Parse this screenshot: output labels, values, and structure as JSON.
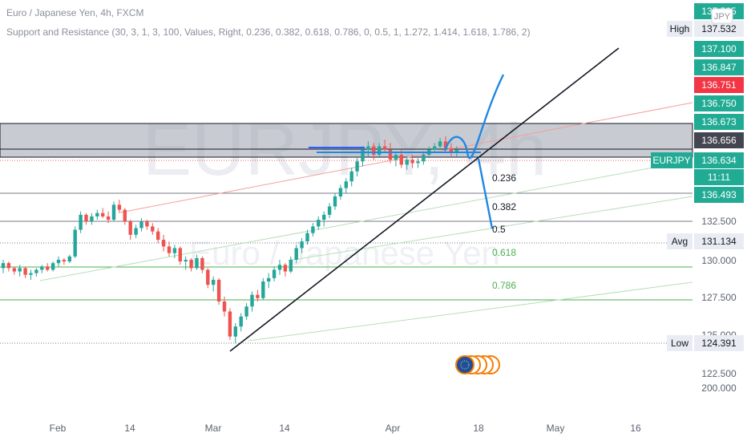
{
  "header": {
    "title": "Euro / Japanese Yen, 4h, FXCM",
    "study": "Support and Resistance (30, 3, 1, 3, 100, Values, Right, 0.236, 0.382, 0.618, 0.786, 0, 0.5, 1, 1.272, 1.414, 1.618, 1.786, 2)"
  },
  "watermark": {
    "symbol": "EURJPY, 4h",
    "name": "Euro / Japanese Yen"
  },
  "currency_badge": "JPY",
  "colors": {
    "up": "#26a69a",
    "down": "#ef5350",
    "trendline": "#131722",
    "drawing": "#2962ff",
    "fib": "#4caf50",
    "price_tag": "#22ab94",
    "highlight_tag": "#f23645",
    "dark_tag": "#434651"
  },
  "chart_data": {
    "type": "candlestick",
    "symbol": "EURJPY",
    "timeframe": "4h",
    "x_tick_labels": [
      "Feb",
      "14",
      "Mar",
      "14",
      "Apr",
      "18",
      "May",
      "16"
    ],
    "price_scale_labels": [
      {
        "label": "",
        "value": "137.535",
        "style": "teal"
      },
      {
        "label": "High",
        "value": "137.532",
        "style": "light"
      },
      {
        "label": "",
        "value": "137.100",
        "style": "teal"
      },
      {
        "label": "",
        "value": "136.847",
        "style": "teal"
      },
      {
        "label": "",
        "value": "136.751",
        "style": "red"
      },
      {
        "label": "",
        "value": "136.750",
        "style": "teal"
      },
      {
        "label": "",
        "value": "136.673",
        "style": "teal"
      },
      {
        "label": "",
        "value": "136.656",
        "style": "dark"
      },
      {
        "label": "EURJPY",
        "value": "136.634",
        "style": "teal"
      },
      {
        "label": "",
        "value": "11:11",
        "style": "teal"
      },
      {
        "label": "",
        "value": "136.493",
        "style": "teal"
      },
      {
        "label": "",
        "value": "132.500",
        "style": "plain"
      },
      {
        "label": "Avg",
        "value": "131.134",
        "style": "light"
      },
      {
        "label": "",
        "value": "130.000",
        "style": "plain"
      },
      {
        "label": "",
        "value": "127.500",
        "style": "plain"
      },
      {
        "label": "",
        "value": "125.000",
        "style": "plain"
      },
      {
        "label": "Low",
        "value": "124.391",
        "style": "light"
      },
      {
        "label": "",
        "value": "122.500",
        "style": "plain"
      },
      {
        "label": "",
        "value": "200.000",
        "style": "plain"
      }
    ],
    "fib_levels": [
      {
        "label": "0.236",
        "color": "#131722"
      },
      {
        "label": "0.382",
        "color": "#131722"
      },
      {
        "label": "0.5",
        "color": "#131722"
      },
      {
        "label": "0.618",
        "color": "#4caf50"
      },
      {
        "label": "0.786",
        "color": "#4caf50"
      }
    ],
    "candles_ohlc": [
      [
        128.9,
        129.4,
        128.6,
        129.2
      ],
      [
        129.2,
        129.3,
        128.7,
        128.9
      ],
      [
        128.9,
        129.0,
        128.5,
        128.7
      ],
      [
        128.7,
        129.1,
        128.4,
        128.9
      ],
      [
        128.9,
        129.0,
        128.3,
        128.5
      ],
      [
        128.5,
        128.8,
        128.2,
        128.6
      ],
      [
        128.6,
        128.9,
        128.4,
        128.8
      ],
      [
        128.8,
        129.1,
        128.6,
        129.0
      ],
      [
        129.0,
        129.2,
        128.7,
        128.8
      ],
      [
        128.8,
        129.3,
        128.7,
        129.2
      ],
      [
        129.2,
        129.6,
        129.0,
        129.4
      ],
      [
        129.4,
        129.5,
        129.1,
        129.3
      ],
      [
        129.3,
        129.7,
        129.2,
        129.6
      ],
      [
        129.6,
        131.4,
        129.5,
        131.2
      ],
      [
        131.2,
        132.3,
        131.0,
        132.1
      ],
      [
        132.1,
        132.2,
        131.5,
        131.7
      ],
      [
        131.7,
        132.2,
        131.5,
        132.0
      ],
      [
        132.0,
        132.4,
        131.8,
        132.2
      ],
      [
        132.2,
        132.5,
        131.9,
        132.0
      ],
      [
        132.0,
        132.3,
        131.6,
        131.8
      ],
      [
        131.8,
        132.9,
        131.7,
        132.7
      ],
      [
        132.7,
        133.0,
        132.2,
        132.4
      ],
      [
        132.4,
        132.5,
        131.5,
        131.7
      ],
      [
        131.7,
        131.8,
        130.6,
        130.9
      ],
      [
        130.9,
        131.5,
        130.7,
        131.3
      ],
      [
        131.3,
        131.9,
        131.1,
        131.7
      ],
      [
        131.7,
        131.8,
        131.2,
        131.4
      ],
      [
        131.4,
        131.6,
        130.9,
        131.1
      ],
      [
        131.1,
        131.3,
        130.4,
        130.6
      ],
      [
        130.6,
        130.9,
        129.9,
        130.2
      ],
      [
        130.2,
        130.5,
        129.6,
        129.8
      ],
      [
        129.8,
        130.3,
        129.5,
        130.1
      ],
      [
        130.1,
        130.2,
        129.1,
        129.3
      ],
      [
        129.3,
        129.6,
        128.8,
        129.4
      ],
      [
        129.4,
        129.5,
        128.7,
        128.9
      ],
      [
        128.9,
        129.7,
        128.8,
        129.5
      ],
      [
        129.5,
        129.6,
        128.6,
        128.8
      ],
      [
        128.8,
        128.9,
        127.7,
        127.9
      ],
      [
        127.9,
        128.4,
        127.5,
        128.2
      ],
      [
        128.2,
        128.3,
        126.7,
        126.9
      ],
      [
        126.9,
        127.2,
        126.0,
        126.3
      ],
      [
        126.3,
        126.5,
        124.6,
        124.8
      ],
      [
        124.8,
        125.6,
        124.4,
        125.4
      ],
      [
        125.4,
        126.2,
        125.1,
        126.0
      ],
      [
        126.0,
        126.8,
        125.8,
        126.6
      ],
      [
        126.6,
        127.5,
        126.3,
        127.3
      ],
      [
        127.3,
        127.6,
        126.9,
        127.1
      ],
      [
        127.1,
        128.3,
        127.0,
        128.1
      ],
      [
        128.1,
        128.6,
        127.7,
        128.3
      ],
      [
        128.3,
        129.0,
        128.1,
        128.8
      ],
      [
        128.8,
        129.4,
        128.5,
        129.1
      ],
      [
        129.1,
        129.2,
        128.4,
        128.7
      ],
      [
        128.7,
        129.6,
        128.6,
        129.4
      ],
      [
        129.4,
        130.3,
        129.2,
        130.1
      ],
      [
        130.1,
        130.7,
        129.8,
        130.5
      ],
      [
        130.5,
        131.2,
        130.3,
        131.0
      ],
      [
        131.0,
        131.6,
        130.8,
        131.4
      ],
      [
        131.4,
        132.0,
        131.2,
        131.8
      ],
      [
        131.8,
        132.3,
        131.4,
        132.1
      ],
      [
        132.1,
        132.8,
        131.9,
        132.6
      ],
      [
        132.6,
        133.4,
        132.4,
        133.2
      ],
      [
        133.2,
        133.9,
        133.0,
        133.7
      ],
      [
        133.7,
        134.3,
        133.4,
        134.1
      ],
      [
        134.1,
        134.9,
        133.8,
        134.7
      ],
      [
        134.7,
        135.5,
        134.4,
        135.3
      ],
      [
        135.3,
        136.2,
        135.0,
        136.0
      ],
      [
        136.0,
        136.5,
        135.6,
        136.2
      ],
      [
        136.2,
        136.4,
        135.4,
        135.7
      ],
      [
        135.7,
        136.4,
        135.5,
        136.2
      ],
      [
        136.2,
        136.6,
        135.8,
        136.0
      ],
      [
        136.0,
        136.4,
        135.2,
        135.4
      ],
      [
        135.4,
        135.9,
        135.0,
        135.7
      ],
      [
        135.7,
        136.0,
        134.9,
        135.1
      ],
      [
        135.1,
        135.6,
        134.8,
        135.4
      ],
      [
        135.4,
        135.7,
        134.9,
        135.2
      ],
      [
        135.2,
        135.5,
        134.9,
        135.3
      ],
      [
        135.3,
        135.9,
        135.1,
        135.7
      ],
      [
        135.7,
        136.2,
        135.5,
        136.0
      ],
      [
        136.0,
        136.4,
        135.8,
        136.2
      ],
      [
        136.2,
        136.7,
        136.0,
        136.5
      ],
      [
        136.5,
        136.8,
        135.9,
        136.1
      ],
      [
        136.1,
        136.4,
        135.6,
        135.8
      ],
      [
        135.8,
        136.2,
        135.6,
        136.0
      ]
    ]
  }
}
